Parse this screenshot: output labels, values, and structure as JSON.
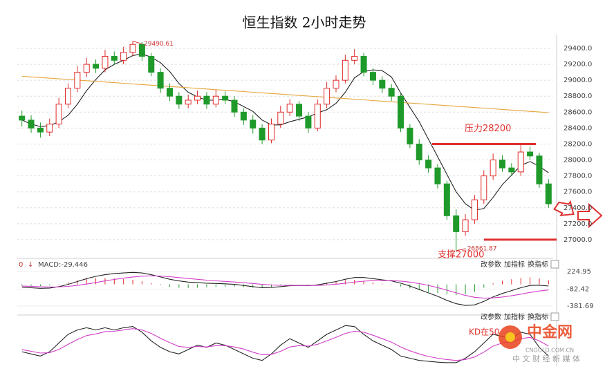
{
  "title": "恒生指数 2小时走势",
  "watermark": {
    "name": "中金网",
    "site": "CNGOLD.COM.CN",
    "slogan": "中 文 财 经 新 媒 体"
  },
  "chart_data": [
    {
      "type": "candlestick",
      "open": [
        28550,
        28500,
        28400,
        28350,
        28450,
        28700,
        28900,
        29100,
        29200,
        29150,
        29300,
        29250,
        29350,
        29450,
        29300,
        29100,
        28900,
        28800,
        28700,
        28750,
        28800,
        28700,
        28800,
        28750,
        28600,
        28500,
        28400,
        28250,
        28450,
        28600,
        28700,
        28550,
        28400,
        28700,
        28900,
        29000,
        29250,
        29300,
        29100,
        29000,
        28900,
        28800,
        28400,
        28200,
        28000,
        27900,
        27700,
        27300,
        27100,
        27250,
        27500,
        27800,
        28000,
        27900,
        27850,
        28100,
        28050,
        27700
      ],
      "high": [
        28620,
        28560,
        28470,
        28520,
        28780,
        28960,
        29180,
        29280,
        29260,
        29380,
        29360,
        29420,
        29490.61,
        29480,
        29340,
        29150,
        28960,
        28850,
        28820,
        28870,
        28850,
        28880,
        28860,
        28800,
        28650,
        28560,
        28450,
        28520,
        28680,
        28760,
        28740,
        28600,
        28760,
        28980,
        29060,
        29320,
        29390,
        29340,
        29150,
        29050,
        28950,
        28830,
        28450,
        28260,
        28060,
        27950,
        27740,
        27380,
        27320,
        27560,
        27870,
        28080,
        28060,
        27960,
        28190,
        28170,
        28090,
        27760
      ],
      "low": [
        28420,
        28340,
        28280,
        28300,
        28400,
        28650,
        28850,
        29040,
        29090,
        29100,
        29190,
        29200,
        29300,
        29240,
        29050,
        28840,
        28740,
        28640,
        28650,
        28700,
        28640,
        28660,
        28700,
        28540,
        28440,
        28330,
        28200,
        28210,
        28400,
        28550,
        28490,
        28340,
        28360,
        28650,
        28850,
        28960,
        29200,
        29050,
        28940,
        28840,
        28740,
        28350,
        28150,
        27940,
        27840,
        27640,
        27250,
        26861.87,
        27050,
        27200,
        27450,
        27750,
        27850,
        27800,
        27800,
        28000,
        27650,
        27400
      ],
      "close": [
        28500,
        28400,
        28350,
        28450,
        28700,
        28900,
        29100,
        29200,
        29150,
        29300,
        29250,
        29350,
        29450,
        29300,
        29100,
        28900,
        28800,
        28700,
        28750,
        28800,
        28700,
        28800,
        28750,
        28600,
        28500,
        28400,
        28250,
        28450,
        28600,
        28700,
        28550,
        28400,
        28700,
        28900,
        29000,
        29250,
        29300,
        29100,
        29000,
        28900,
        28800,
        28400,
        28200,
        28000,
        27900,
        27700,
        27300,
        27100,
        27250,
        27500,
        27800,
        28000,
        27900,
        27850,
        28100,
        28050,
        27700,
        27450
      ],
      "up_color": "#e02828",
      "down_color": "#1f9a2a",
      "series": [
        {
          "color": "#222222",
          "values": [
            28500,
            28450,
            28420,
            28430,
            28480,
            28560,
            28700,
            28870,
            29010,
            29130,
            29200,
            29250,
            29310,
            29330,
            29290,
            29220,
            29110,
            28960,
            28850,
            28790,
            28750,
            28750,
            28760,
            28730,
            28670,
            28610,
            28500,
            28440,
            28440,
            28480,
            28510,
            28540,
            28590,
            28630,
            28710,
            28850,
            29030,
            29110,
            29130,
            29120,
            29040,
            28840,
            28660,
            28480,
            28260,
            28040,
            27820,
            27600,
            27450,
            27370,
            27390,
            27530,
            27690,
            27810,
            27930,
            27980,
            27920,
            27840
          ]
        },
        {
          "color": "#e6a53a",
          "values": [
            29050,
            29042,
            29034,
            29026,
            29018,
            29010,
            29002,
            28994,
            28986,
            28978,
            28970,
            28962,
            28954,
            28946,
            28938,
            28930,
            28922,
            28914,
            28906,
            28898,
            28890,
            28882,
            28874,
            28866,
            28858,
            28850,
            28842,
            28834,
            28826,
            28818,
            28810,
            28802,
            28794,
            28786,
            28778,
            28770,
            28762,
            28754,
            28746,
            28738,
            28730,
            28722,
            28714,
            28706,
            28698,
            28690,
            28682,
            28674,
            28666,
            28658,
            28650,
            28642,
            28634,
            28626,
            28618,
            28610,
            28602,
            28594
          ]
        }
      ],
      "ylim": [
        26800,
        29530
      ],
      "yticks": [
        {
          "value": 27000,
          "label": "27000.0"
        },
        {
          "value": 27200,
          "label": "27200.0"
        },
        {
          "value": 27400,
          "label": "27400.0"
        },
        {
          "value": 27600,
          "label": "27600.0"
        },
        {
          "value": 27800,
          "label": "27800.0"
        },
        {
          "value": 28000,
          "label": "28000.0"
        },
        {
          "value": 28200,
          "label": "28200.0"
        },
        {
          "value": 28400,
          "label": "28400.0"
        },
        {
          "value": 28600,
          "label": "28600.0"
        },
        {
          "value": 28800,
          "label": "28800.0"
        },
        {
          "value": 29000,
          "label": "29000.0"
        },
        {
          "value": 29200,
          "label": "29200.0"
        },
        {
          "value": 29400,
          "label": "29400.0"
        }
      ],
      "grid": true,
      "resistance": {
        "value": 28200,
        "label": "压力28200",
        "color": "#e03030"
      },
      "support": {
        "value": 27000,
        "label": "支撑27000",
        "color": "#e03030"
      }
    },
    {
      "type": "macd",
      "marker": "0",
      "arrow": "↓",
      "label": "MACD:-29.446",
      "buttons": [
        "改参数",
        "加指标",
        "换指标"
      ],
      "series": [
        {
          "color": "#222222",
          "values": [
            -50,
            -60,
            -70,
            -65,
            -40,
            0,
            50,
            100,
            140,
            170,
            190,
            200,
            210,
            200,
            170,
            130,
            90,
            60,
            40,
            30,
            20,
            15,
            10,
            0,
            -20,
            -40,
            -60,
            -55,
            -40,
            -25,
            -20,
            -25,
            -10,
            20,
            50,
            90,
            120,
            120,
            100,
            80,
            60,
            20,
            -30,
            -90,
            -150,
            -210,
            -280,
            -340,
            -370,
            -360,
            -300,
            -220,
            -160,
            -110,
            -60,
            -20,
            -15,
            -29.446
          ]
        },
        {
          "color": "#d23cc8",
          "values": [
            -30,
            -34,
            -41,
            -46,
            -45,
            -36,
            -19,
            5,
            32,
            60,
            86,
            109,
            130,
            144,
            149,
            145,
            134,
            119,
            103,
            88,
            74,
            62,
            52,
            41,
            29,
            15,
            0,
            -11,
            -17,
            -19,
            -19,
            -20,
            -18,
            -10,
            2,
            20,
            40,
            56,
            65,
            68,
            66,
            57,
            40,
            14,
            -19,
            -57,
            -102,
            -150,
            -194,
            -227,
            -242,
            -238,
            -222,
            -200,
            -172,
            -142,
            -117,
            -99
          ]
        }
      ],
      "hist": [
        -20,
        -26,
        -29,
        -19,
        5,
        36,
        69,
        95,
        108,
        110,
        104,
        91,
        80,
        56,
        21,
        -15,
        -44,
        -59,
        -63,
        -58,
        -54,
        -47,
        -42,
        -41,
        -49,
        -55,
        -60,
        -44,
        -23,
        -6,
        -1,
        -5,
        8,
        30,
        48,
        70,
        80,
        64,
        35,
        12,
        -6,
        -37,
        -70,
        -104,
        -131,
        -153,
        -178,
        -190,
        -176,
        -133,
        -58,
        18,
        62,
        90,
        112,
        122,
        102,
        70
      ],
      "up_color": "#e02828",
      "down_color": "#1f9a2a",
      "ylim": [
        -466,
        383
      ],
      "yticks": [
        224.95,
        -82.42,
        -381.69
      ]
    },
    {
      "type": "line",
      "buttons": [
        "改参数",
        "加指标",
        "换指标"
      ],
      "annotation": "KD在50",
      "series": [
        {
          "color": "#222222",
          "values": [
            30,
            25,
            20,
            30,
            50,
            70,
            80,
            85,
            80,
            85,
            80,
            85,
            88,
            75,
            55,
            40,
            30,
            25,
            35,
            45,
            40,
            50,
            45,
            35,
            25,
            15,
            10,
            25,
            45,
            60,
            50,
            40,
            55,
            70,
            80,
            90,
            88,
            70,
            55,
            45,
            35,
            20,
            15,
            10,
            8,
            6,
            5,
            5,
            15,
            30,
            50,
            70,
            65,
            60,
            75,
            70,
            40,
            20
          ]
        },
        {
          "color": "#d23cc8",
          "values": [
            35,
            31,
            27,
            28,
            35,
            47,
            58,
            67,
            71,
            76,
            77,
            80,
            83,
            80,
            72,
            61,
            51,
            42,
            40,
            42,
            41,
            44,
            44,
            41,
            36,
            29,
            23,
            24,
            31,
            41,
            44,
            43,
            47,
            55,
            63,
            72,
            77,
            75,
            68,
            60,
            52,
            41,
            32,
            25,
            19,
            15,
            12,
            10,
            12,
            18,
            29,
            43,
            50,
            53,
            60,
            63,
            55,
            43
          ]
        }
      ],
      "ylim": [
        0,
        100
      ]
    }
  ]
}
